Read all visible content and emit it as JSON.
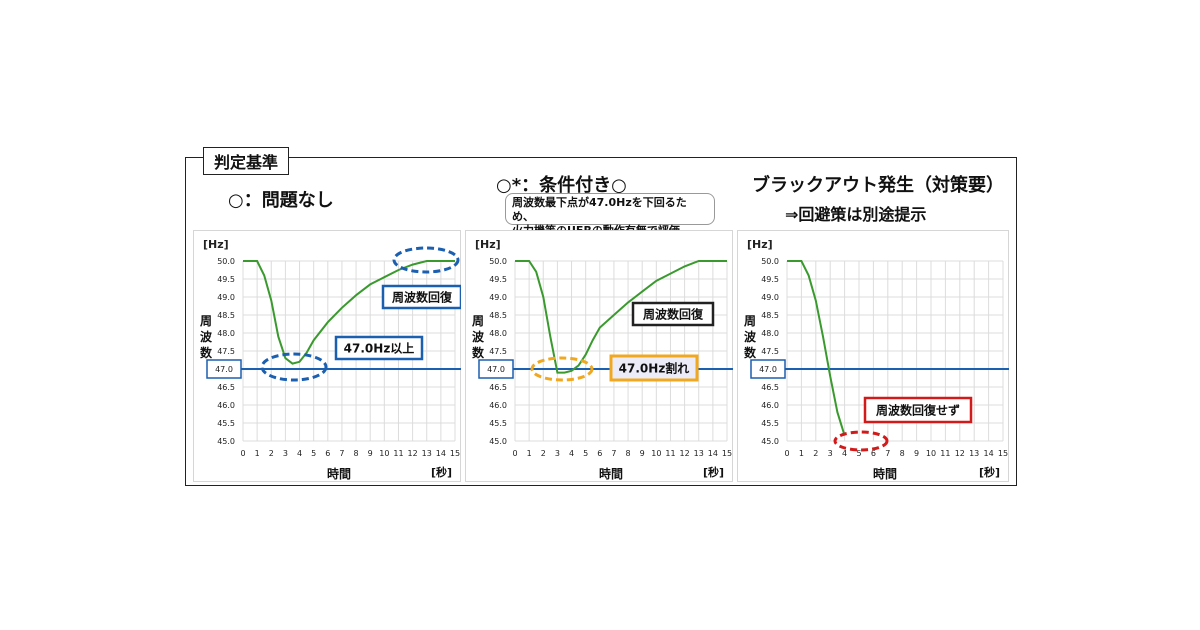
{
  "criteria_label": "判定基準",
  "panels": [
    {
      "heading": "○：問題なし"
    },
    {
      "heading": "○*：条件付き○",
      "note_line1": "周波数最下点が47.0Hzを下回るため、",
      "note_line2": "火力機等のUFRの動作有無で評価"
    },
    {
      "heading": "ブラックアウト発生（対策要）",
      "subheading": "⇒回避策は別途提示"
    }
  ],
  "chart_data": [
    {
      "type": "line",
      "ylabel": "周波数",
      "yunit": "[Hz]",
      "xlabel": "時間",
      "xunit": "[秒]",
      "ylim": [
        45.0,
        50.0
      ],
      "xlim": [
        0,
        15
      ],
      "xticks": [
        "0",
        "1",
        "2",
        "3",
        "4",
        "5",
        "6",
        "7",
        "8",
        "9",
        "10",
        "11",
        "12",
        "13",
        "14",
        "15"
      ],
      "yticks": [
        "50.0",
        "49.5",
        "49.0",
        "48.5",
        "48.0",
        "47.5",
        "47.0",
        "46.5",
        "46.0",
        "45.5",
        "45.0"
      ],
      "threshold": 47.0,
      "threshold_label": "47.0",
      "line_color": "#3a9a2e",
      "threshold_color": "#1b5fb0",
      "series": [
        {
          "x": [
            0,
            1,
            1.5,
            2,
            2.5,
            3,
            3.5,
            4,
            4.5,
            5,
            6,
            7,
            8,
            9,
            10,
            11,
            12,
            13,
            14,
            15
          ],
          "y": [
            50.0,
            50.0,
            49.6,
            48.9,
            47.9,
            47.3,
            47.15,
            47.2,
            47.45,
            47.8,
            48.3,
            48.7,
            49.05,
            49.35,
            49.55,
            49.75,
            49.9,
            50.0,
            50.0,
            50.0
          ]
        }
      ],
      "annotations": [
        {
          "text": "周波数回復",
          "color": "#1b5fb0"
        },
        {
          "text": "47.0Hz以上",
          "color": "#1b5fb0"
        }
      ]
    },
    {
      "type": "line",
      "ylabel": "周波数",
      "yunit": "[Hz]",
      "xlabel": "時間",
      "xunit": "[秒]",
      "ylim": [
        45.0,
        50.0
      ],
      "xlim": [
        0,
        15
      ],
      "xticks": [
        "0",
        "1",
        "2",
        "3",
        "4",
        "5",
        "6",
        "7",
        "8",
        "9",
        "10",
        "11",
        "12",
        "13",
        "14",
        "15"
      ],
      "yticks": [
        "50.0",
        "49.5",
        "49.0",
        "48.5",
        "48.0",
        "47.5",
        "47.0",
        "46.5",
        "46.0",
        "45.5",
        "45.0"
      ],
      "threshold": 47.0,
      "threshold_label": "47.0",
      "line_color": "#3a9a2e",
      "threshold_color": "#1b5fb0",
      "series": [
        {
          "x": [
            0,
            1,
            1.5,
            2,
            2.5,
            3,
            3.5,
            4,
            4.5,
            5,
            5.5,
            6,
            7,
            8,
            9,
            10,
            11,
            12,
            13,
            14,
            15
          ],
          "y": [
            50.0,
            50.0,
            49.7,
            49.0,
            47.9,
            46.9,
            46.9,
            46.95,
            47.1,
            47.4,
            47.8,
            48.15,
            48.5,
            48.85,
            49.15,
            49.45,
            49.65,
            49.85,
            50.0,
            50.0,
            50.0
          ]
        }
      ],
      "annotations": [
        {
          "text": "周波数回復",
          "color": "#222222"
        },
        {
          "text": "47.0Hz割れ",
          "color": "#f0a820"
        }
      ]
    },
    {
      "type": "line",
      "ylabel": "周波数",
      "yunit": "[Hz]",
      "xlabel": "時間",
      "xunit": "[秒]",
      "ylim": [
        45.0,
        50.0
      ],
      "xlim": [
        0,
        15
      ],
      "xticks": [
        "0",
        "1",
        "2",
        "3",
        "4",
        "5",
        "6",
        "7",
        "8",
        "9",
        "10",
        "11",
        "12",
        "13",
        "14",
        "15"
      ],
      "yticks": [
        "50.0",
        "49.5",
        "49.0",
        "48.5",
        "48.0",
        "47.5",
        "47.0",
        "46.5",
        "46.0",
        "45.5",
        "45.0"
      ],
      "threshold": 47.0,
      "threshold_label": "47.0",
      "line_color": "#3a9a2e",
      "threshold_color": "#1b5fb0",
      "series": [
        {
          "x": [
            0,
            1,
            1.5,
            2,
            2.5,
            3,
            3.5,
            4
          ],
          "y": [
            50.0,
            50.0,
            49.6,
            48.9,
            47.9,
            46.8,
            45.8,
            45.15
          ]
        }
      ],
      "annotations": [
        {
          "text": "周波数回復せず",
          "color": "#d21a1a"
        }
      ]
    }
  ]
}
